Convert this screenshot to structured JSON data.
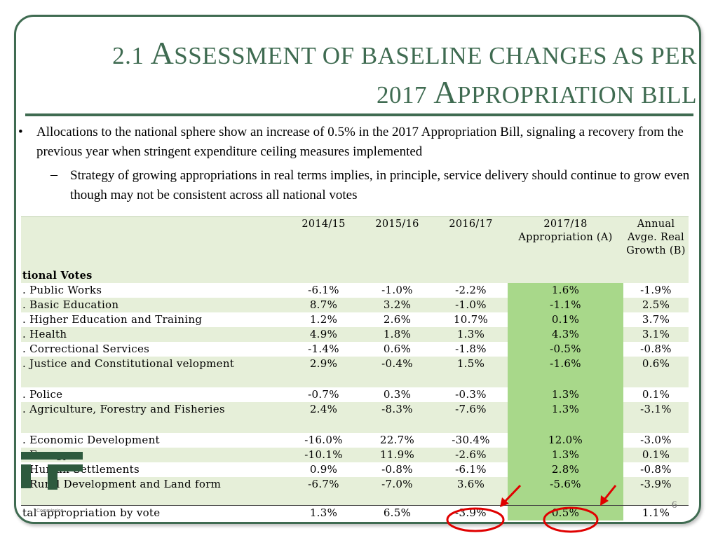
{
  "slide": {
    "title_line1_cap": "2.1 A",
    "title_line1_rest": "SSESSMENT OF BASELINE CHANGES AS PER",
    "title_line2_pre": "2017 A",
    "title_line2_rest": "PPROPRIATION BILL",
    "bullet_mark": "•",
    "bullet1": "Allocations to the national sphere show an increase of 0.5% in the 2017 Appropriation Bill, signaling a recovery from the previous year when stringent expenditure ceiling measures implemented",
    "sub_mark": "–",
    "bullet2": "Strategy of growing appropriations in real terms implies, in principle, service delivery should continue to grow even though may not be consistent across all national votes",
    "page_number": "6",
    "logo_caption": "Commission"
  },
  "table": {
    "columns": [
      "tional Votes",
      "2014/15",
      "2015/16",
      "2016/17",
      "2017/18 Appropriation (A)",
      "Annual Avge. Real Growth (B)"
    ],
    "rows": [
      {
        "name": ". Public Works",
        "v": [
          "-6.1%",
          "-1.0%",
          "-2.2%",
          "1.6%",
          "-1.9%"
        ]
      },
      {
        "name": ". Basic Education",
        "v": [
          "8.7%",
          "3.2%",
          "-1.0%",
          "-1.1%",
          "2.5%"
        ]
      },
      {
        "name": ". Higher Education and Training",
        "v": [
          "1.2%",
          "2.6%",
          "10.7%",
          "0.1%",
          "3.7%"
        ]
      },
      {
        "name": ". Health",
        "v": [
          "4.9%",
          "1.8%",
          "1.3%",
          "4.3%",
          "3.1%"
        ]
      },
      {
        "name": ". Correctional Services",
        "v": [
          "-1.4%",
          "0.6%",
          "-1.8%",
          "-0.5%",
          "-0.8%"
        ]
      },
      {
        "name": ". Justice and Constitutional velopment",
        "v": [
          "2.9%",
          "-0.4%",
          "1.5%",
          "-1.6%",
          "0.6%"
        ]
      },
      {
        "name": ". Police",
        "v": [
          "-0.7%",
          "0.3%",
          "-0.3%",
          "1.3%",
          "0.1%"
        ]
      },
      {
        "name": ". Agriculture, Forestry and Fisheries",
        "v": [
          "2.4%",
          "-8.3%",
          "-7.6%",
          "1.3%",
          "-3.1%"
        ]
      },
      {
        "name": ". Economic Development",
        "v": [
          "-16.0%",
          "22.7%",
          "-30.4%",
          "12.0%",
          "-3.0%"
        ]
      },
      {
        "name": ". Energy",
        "v": [
          "-10.1%",
          "11.9%",
          "-2.6%",
          "1.3%",
          "0.1%"
        ]
      },
      {
        "name": ". Human Settlements",
        "v": [
          "0.9%",
          "-0.8%",
          "-6.1%",
          "2.8%",
          "-0.8%"
        ]
      },
      {
        "name": ". Rural Development and Land form",
        "v": [
          "-6.7%",
          "-7.0%",
          "3.6%",
          "-5.6%",
          "-3.9%"
        ]
      },
      {
        "name": "tal appropriation by vote",
        "v": [
          "1.3%",
          "6.5%",
          "-3.9%",
          "0.5%",
          "1.1%"
        ]
      }
    ]
  },
  "colors": {
    "theme_green": "#3f6b51",
    "header_fill": "#e6efd9",
    "highlight_green": "#a8d88a",
    "annotation_red": "#e00000"
  }
}
